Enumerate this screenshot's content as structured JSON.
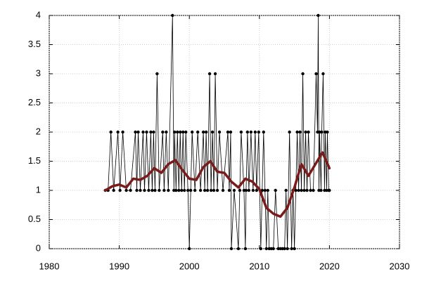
{
  "chart_data": {
    "type": "line",
    "xlim": [
      1980,
      2030
    ],
    "xticks": [
      1980,
      1990,
      2000,
      2010,
      2020,
      2030
    ],
    "ylim": [
      0,
      4
    ],
    "yticks": [
      0,
      0.5,
      1,
      1.5,
      2,
      2.5,
      3,
      3.5,
      4
    ],
    "grid": true,
    "series": [
      {
        "color": "#000000",
        "markers": true,
        "x": [
          1988,
          1988.4,
          1988.8,
          1989.2,
          1989.8,
          1990.1,
          1990.5,
          1991,
          1991.6,
          1992.3,
          1992.5,
          1992.7,
          1993,
          1993.4,
          1993.6,
          1993.9,
          1994.2,
          1994.5,
          1994.7,
          1994.9,
          1995.1,
          1995.4,
          1995.7,
          1996.2,
          1996.4,
          1996.7,
          1997,
          1997.6,
          1997.8,
          1997.9,
          1998.1,
          1998.3,
          1998.5,
          1998.7,
          1998.9,
          1999.1,
          1999.3,
          1999.5,
          1999.8,
          2000,
          2000.2,
          2000.4,
          2000.8,
          2001.2,
          2001.6,
          2002,
          2002.2,
          2002.4,
          2002.6,
          2002.9,
          2003.1,
          2003.3,
          2003.5,
          2003.7,
          2004,
          2004.3,
          2004.8,
          2005.5,
          2005.7,
          2005.9,
          2006,
          2006.4,
          2007,
          2007.2,
          2007.4,
          2007.8,
          2008,
          2008.1,
          2008.3,
          2008.5,
          2008.8,
          2009.1,
          2009.4,
          2009.6,
          2009.9,
          2010.2,
          2010.4,
          2010.6,
          2010.8,
          2011,
          2011.2,
          2011.4,
          2011.7,
          2012,
          2012.3,
          2012.7,
          2013,
          2013.3,
          2013.6,
          2013.8,
          2014,
          2014.3,
          2014.6,
          2014.8,
          2015,
          2015.2,
          2015.4,
          2015.6,
          2015.8,
          2016,
          2016.2,
          2016.4,
          2016.6,
          2016.8,
          2017,
          2017.3,
          2017.7,
          2018.1,
          2018.3,
          2018.4,
          2018.5,
          2018.6,
          2018.8,
          2018.9,
          2019.1,
          2019.3,
          2019.4,
          2019.6,
          2019.7,
          2019.9,
          2020
        ],
        "values": [
          1,
          1,
          2,
          1,
          2,
          1,
          2,
          1,
          1,
          2,
          1,
          2,
          1,
          2,
          1,
          2,
          1,
          2,
          1,
          2,
          1,
          3,
          1,
          2,
          1,
          2,
          1,
          4,
          1,
          2,
          1,
          2,
          1,
          2,
          1,
          2,
          1,
          2,
          1,
          0,
          1,
          2,
          1,
          2,
          1,
          2,
          1,
          2,
          1,
          3,
          1,
          2,
          1,
          3,
          1,
          2,
          1,
          2,
          1,
          2,
          0,
          1,
          0,
          1,
          2,
          1,
          0,
          1,
          2,
          1,
          2,
          1,
          2,
          1,
          2,
          0,
          1,
          2,
          1,
          0,
          1,
          0,
          0,
          0,
          1,
          0,
          0,
          0,
          0,
          1,
          0,
          2,
          0,
          1,
          0,
          1,
          2,
          1,
          2,
          1,
          3,
          1,
          2,
          1,
          2,
          1,
          1,
          3,
          2,
          4,
          1,
          2,
          1,
          2,
          3,
          1,
          2,
          1,
          2,
          1,
          1
        ]
      },
      {
        "color": "#7a1b1b",
        "markers": false,
        "x": [
          1988,
          1989,
          1990,
          1991,
          1992,
          1993,
          1994,
          1995,
          1996,
          1997,
          1998,
          1999,
          2000,
          2001,
          2002,
          2003,
          2004,
          2005,
          2006,
          2007,
          2008,
          2009,
          2010,
          2011,
          2012,
          2013,
          2014,
          2015,
          2016,
          2017,
          2018,
          2019,
          2020
        ],
        "values": [
          1.0,
          1.07,
          1.1,
          1.05,
          1.2,
          1.18,
          1.25,
          1.38,
          1.3,
          1.45,
          1.52,
          1.35,
          1.2,
          1.18,
          1.4,
          1.5,
          1.32,
          1.3,
          1.15,
          1.05,
          1.2,
          1.15,
          1.02,
          0.7,
          0.6,
          0.55,
          0.7,
          1.05,
          1.45,
          1.25,
          1.45,
          1.65,
          1.38
        ]
      }
    ]
  }
}
